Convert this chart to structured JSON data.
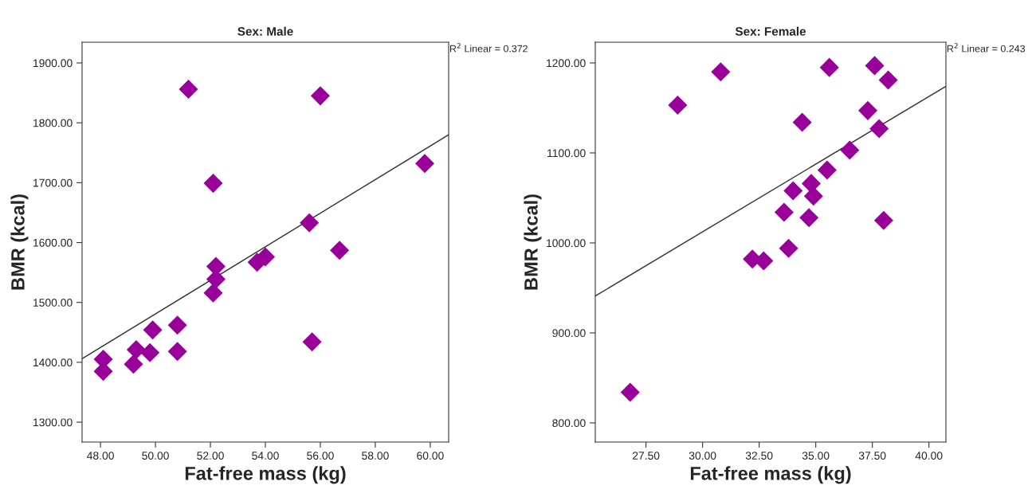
{
  "chart_data": [
    {
      "type": "scatter",
      "title": "Sex: Male",
      "xlabel": "Fat-free mass (kg)",
      "ylabel": "BMR (kcal)",
      "annotations": [
        "R$^{2}$ Linear = 0.372"
      ],
      "marker": "diamond",
      "grid": false,
      "legend": false,
      "xlim": [
        47.33,
        60.67
      ],
      "ylim": [
        1266.8,
        1934.6
      ],
      "xticks": [
        {
          "value": 48,
          "label": "48.00"
        },
        {
          "value": 50,
          "label": "50.00"
        },
        {
          "value": 52,
          "label": "52.00"
        },
        {
          "value": 54,
          "label": "54.00"
        },
        {
          "value": 56,
          "label": "56.00"
        },
        {
          "value": 58,
          "label": "58.00"
        },
        {
          "value": 60,
          "label": "60.00"
        }
      ],
      "yticks": [
        {
          "value": 1300,
          "label": "1300.00"
        },
        {
          "value": 1400,
          "label": "1400.00"
        },
        {
          "value": 1500,
          "label": "1500.00"
        },
        {
          "value": 1600,
          "label": "1600.00"
        },
        {
          "value": 1700,
          "label": "1700.00"
        },
        {
          "value": 1800,
          "label": "1800.00"
        },
        {
          "value": 1900,
          "label": "1900.00"
        }
      ],
      "series": [
        {
          "color": "#990099",
          "x": [
            48.1,
            48.1,
            49.2,
            49.3,
            49.8,
            49.9,
            50.8,
            50.8,
            51.2,
            52.1,
            52.1,
            52.2,
            52.2,
            53.7,
            54.0,
            55.6,
            55.7,
            56.0,
            56.7,
            59.8
          ],
          "values": [
            1405,
            1385,
            1397,
            1421,
            1416,
            1454,
            1462,
            1418,
            1856,
            1699,
            1516,
            1560,
            1539,
            1567,
            1576,
            1633,
            1434,
            1845,
            1587,
            1732
          ]
        },
        {
          "type": "line",
          "color": "#333333",
          "marker": "none",
          "x": [
            47.33,
            60.67
          ],
          "values": [
            1406,
            1780
          ]
        }
      ]
    },
    {
      "type": "scatter",
      "title": "Sex: Female",
      "xlabel": "Fat-free mass (kg)",
      "ylabel": "BMR (kcal)",
      "annotations": [
        "R$^{2}$ Linear = 0.243"
      ],
      "marker": "diamond",
      "grid": false,
      "legend": false,
      "xlim": [
        25.26,
        40.75
      ],
      "ylim": [
        778.7,
        1223
      ],
      "xticks": [
        {
          "value": 27.5,
          "label": "27.50"
        },
        {
          "value": 30,
          "label": "30.00"
        },
        {
          "value": 32.5,
          "label": "32.50"
        },
        {
          "value": 35,
          "label": "35.00"
        },
        {
          "value": 37.5,
          "label": "37.50"
        },
        {
          "value": 40,
          "label": "40.00"
        }
      ],
      "yticks": [
        {
          "value": 800,
          "label": "800.00"
        },
        {
          "value": 900,
          "label": "900.00"
        },
        {
          "value": 1000,
          "label": "1000.00"
        },
        {
          "value": 1100,
          "label": "1100.00"
        },
        {
          "value": 1200,
          "label": "1200.00"
        }
      ],
      "series": [
        {
          "color": "#990099",
          "x": [
            26.8,
            28.9,
            30.8,
            32.2,
            32.7,
            33.6,
            33.8,
            34.0,
            34.4,
            34.7,
            34.8,
            34.9,
            35.5,
            35.6,
            36.5,
            37.3,
            37.6,
            37.8,
            38.0,
            38.2
          ],
          "values": [
            834,
            1153,
            1190,
            982,
            980,
            1034,
            994,
            1058,
            1134,
            1028,
            1066,
            1052,
            1081,
            1195,
            1103,
            1147,
            1197,
            1127,
            1025,
            1181
          ]
        },
        {
          "type": "line",
          "color": "#333333",
          "marker": "none",
          "x": [
            25.26,
            40.75
          ],
          "values": [
            941,
            1174
          ]
        }
      ]
    }
  ]
}
